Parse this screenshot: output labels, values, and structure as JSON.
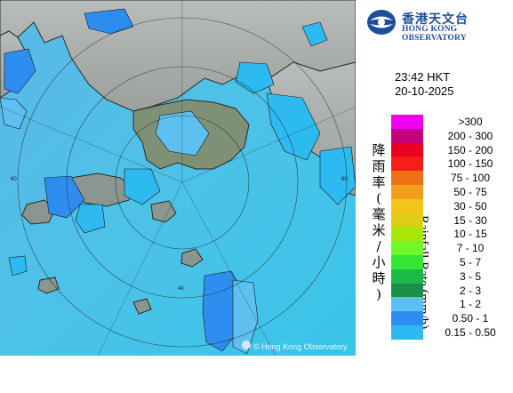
{
  "organization": {
    "name_cn": "香港天文台",
    "name_en": "HONG KONG OBSERVATORY"
  },
  "observation": {
    "time": "23:42 HKT",
    "date": "20-10-2025"
  },
  "legend": {
    "title_cn": "降雨率(毫米/小時)",
    "title_en": "Rainfall Rate (mm/h)",
    "rows": [
      {
        "label": ">300",
        "color": "#f000f0"
      },
      {
        "label": "200 - 300",
        "color": "#c4007c"
      },
      {
        "label": "150 - 200",
        "color": "#ec0022"
      },
      {
        "label": "100 - 150",
        "color": "#f51f16"
      },
      {
        "label": "75 - 100",
        "color": "#f07016"
      },
      {
        "label": "50 - 75",
        "color": "#f0a018"
      },
      {
        "label": "30 - 50",
        "color": "#f3c41a"
      },
      {
        "label": "15 - 30",
        "color": "#dcce14"
      },
      {
        "label": "10 - 15",
        "color": "#a8e808"
      },
      {
        "label": "7 - 10",
        "color": "#6ef82c"
      },
      {
        "label": "5 - 7",
        "color": "#36e636"
      },
      {
        "label": "3 - 5",
        "color": "#1cba48"
      },
      {
        "label": "2 - 3",
        "color": "#188e48"
      },
      {
        "label": "1 - 2",
        "color": "#5ec0f0"
      },
      {
        "label": "0.50 - 1",
        "color": "#2e8ef0"
      },
      {
        "label": "0.15 - 0.50",
        "color": "#2cbaf0"
      }
    ]
  },
  "map": {
    "copyright": "© Hong Kong Observatory",
    "range_labels": [
      "40",
      "60",
      "60"
    ]
  }
}
